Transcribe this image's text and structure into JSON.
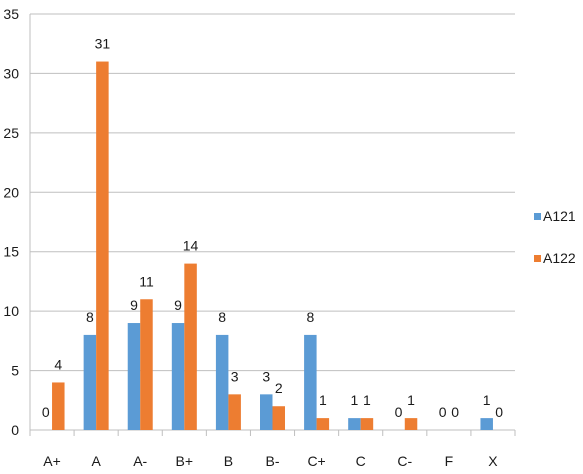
{
  "chart_data": {
    "type": "bar",
    "categories": [
      "A+",
      "A",
      "A-",
      "B+",
      "B",
      "B-",
      "C+",
      "C",
      "C-",
      "F",
      "X"
    ],
    "series": [
      {
        "name": "A121",
        "color": "#5B9BD5",
        "values": [
          0,
          8,
          9,
          9,
          8,
          3,
          8,
          1,
          0,
          0,
          1
        ]
      },
      {
        "name": "A122",
        "color": "#ED7D31",
        "values": [
          4,
          31,
          11,
          14,
          3,
          2,
          1,
          1,
          1,
          0,
          0
        ]
      }
    ],
    "ylim": [
      0,
      35
    ],
    "yticks": [
      0,
      5,
      10,
      15,
      20,
      25,
      30,
      35
    ],
    "grid": true,
    "legend": "right",
    "data_labels": true
  }
}
